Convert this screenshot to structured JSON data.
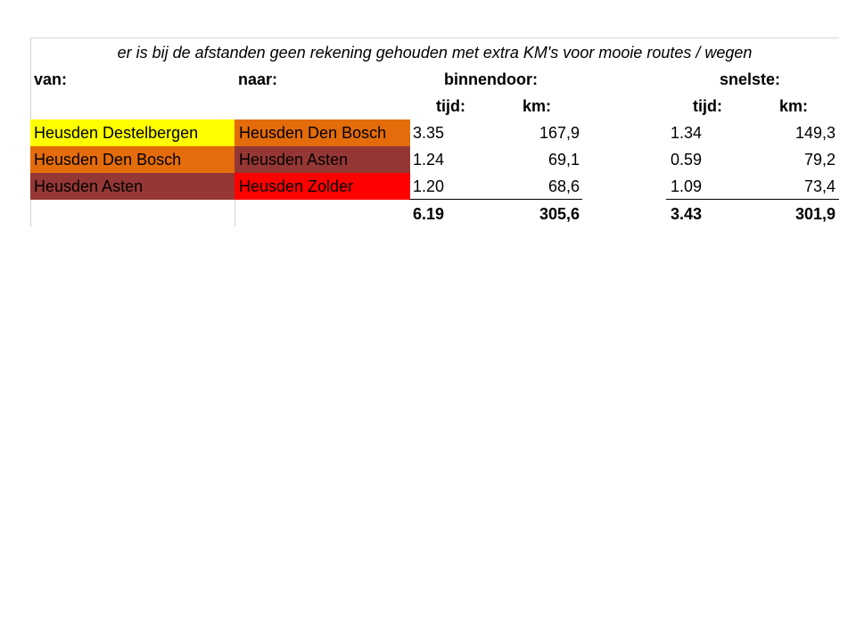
{
  "note": "er is bij de afstanden geen rekening gehouden met extra KM's voor mooie routes / wegen",
  "headers": {
    "van": "van:",
    "naar": "naar:",
    "binnendoor": "binnendoor:",
    "snelste": "snelste:",
    "tijd": "tijd:",
    "km": "km:"
  },
  "colors": {
    "yellow": "#ffff00",
    "orange": "#e46c0a",
    "brown": "#953735",
    "red": "#ff0000"
  },
  "rows": [
    {
      "van": "Heusden Destelbergen",
      "naar": "Heusden Den Bosch",
      "b_tijd": "3.35",
      "b_km": "167,9",
      "s_tijd": "1.34",
      "s_km": "149,3"
    },
    {
      "van": "Heusden Den Bosch",
      "naar": "Heusden Asten",
      "b_tijd": "1.24",
      "b_km": "69,1",
      "s_tijd": "0.59",
      "s_km": "79,2"
    },
    {
      "van": "Heusden Asten",
      "naar": "Heusden Zolder",
      "b_tijd": "1.20",
      "b_km": "68,6",
      "s_tijd": "1.09",
      "s_km": "73,4"
    }
  ],
  "totals": {
    "b_tijd": "6.19",
    "b_km": "305,6",
    "s_tijd": "3.43",
    "s_km": "301,9"
  }
}
